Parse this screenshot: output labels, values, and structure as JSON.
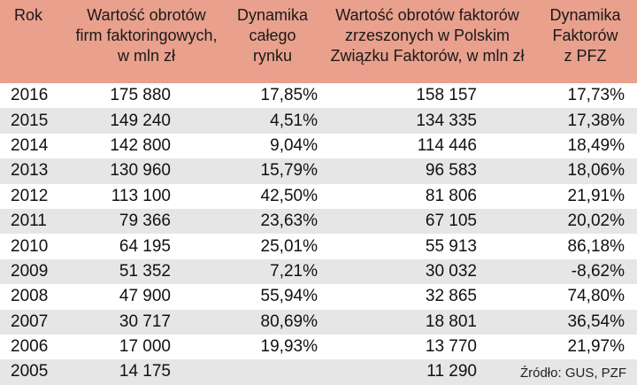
{
  "headers": {
    "rok": "Rok",
    "obroty_line1": "Wartość obrotów",
    "obroty_line2": "firm faktoringowych,",
    "obroty_line3": "w mln zł",
    "dynamika_line1": "Dynamika",
    "dynamika_line2": "całego",
    "dynamika_line3": "rynku",
    "pzf_line1": "Wartość obrotów faktorów",
    "pzf_line2": "zrzeszonych w Polskim",
    "pzf_line3": "Związku Faktorów, w mln zł",
    "dynp_line1": "Dynamika",
    "dynp_line2": "Faktorów",
    "dynp_line3": "z PFZ"
  },
  "rows": [
    {
      "rok": "2016",
      "obroty": "175 880",
      "dynamika": "17,85%",
      "pzf": "158 157",
      "dyn_pzf": "17,73%"
    },
    {
      "rok": "2015",
      "obroty": "149 240",
      "dynamika": "4,51%",
      "pzf": "134 335",
      "dyn_pzf": "17,38%"
    },
    {
      "rok": "2014",
      "obroty": "142 800",
      "dynamika": "9,04%",
      "pzf": "114 446",
      "dyn_pzf": "18,49%"
    },
    {
      "rok": "2013",
      "obroty": "130 960",
      "dynamika": "15,79%",
      "pzf": "96 583",
      "dyn_pzf": "18,06%"
    },
    {
      "rok": "2012",
      "obroty": "113 100",
      "dynamika": "42,50%",
      "pzf": "81 806",
      "dyn_pzf": "21,91%"
    },
    {
      "rok": "2011",
      "obroty": "79 366",
      "dynamika": "23,63%",
      "pzf": "67 105",
      "dyn_pzf": "20,02%"
    },
    {
      "rok": "2010",
      "obroty": "64 195",
      "dynamika": "25,01%",
      "pzf": "55 913",
      "dyn_pzf": "86,18%"
    },
    {
      "rok": "2009",
      "obroty": "51 352",
      "dynamika": "7,21%",
      "pzf": "30 032",
      "dyn_pzf": "-8,62%"
    },
    {
      "rok": "2008",
      "obroty": "47 900",
      "dynamika": "55,94%",
      "pzf": "32 865",
      "dyn_pzf": "74,80%"
    },
    {
      "rok": "2007",
      "obroty": "30 717",
      "dynamika": "80,69%",
      "pzf": "18 801",
      "dyn_pzf": "36,54%"
    },
    {
      "rok": "2006",
      "obroty": "17 000",
      "dynamika": "19,93%",
      "pzf": "13 770",
      "dyn_pzf": "21,97%"
    },
    {
      "rok": "2005",
      "obroty": "14 175",
      "dynamika": "",
      "pzf": "11 290",
      "dyn_pzf": ""
    }
  ],
  "source": "Źródło: GUS, PZF",
  "colors": {
    "header_bg": "#e9a08c",
    "stripe_bg": "#e6e6e6"
  }
}
